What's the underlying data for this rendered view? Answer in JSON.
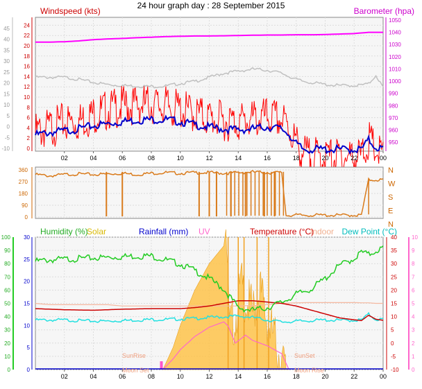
{
  "title": "24 hour graph day : 28 September 2015",
  "x_ticks": [
    "02",
    "04",
    "06",
    "08",
    "10",
    "12",
    "14",
    "16",
    "18",
    "20",
    "22",
    "00"
  ],
  "colors": {
    "wind_avg": "#0000cc",
    "wind_gust": "#ff0000",
    "barometer": "#ff00ff",
    "wind_dir": "#d97a1a",
    "humidity": "#22cc22",
    "solar": "#ffc040",
    "rainfall": "#0000cc",
    "uv": "#ff66cc",
    "temperature": "#cc0000",
    "indoor": "#f5b8a0",
    "dew_point": "#22e0e0",
    "gray_series": "#c0c0c0"
  },
  "chart_data": [
    {
      "type": "line",
      "panel": "wind",
      "labels": {
        "left": "Windspeed (kts)",
        "right": "Barometer (hpa)"
      },
      "left_axis_outer": [
        "45",
        "40",
        "35",
        "30",
        "25",
        "20",
        "15",
        "10",
        "5",
        "0",
        "-5",
        "-10"
      ],
      "left_axis_inner": [
        "24",
        "22",
        "20",
        "18",
        "16",
        "14",
        "12",
        "10",
        "8",
        "6",
        "4",
        "2",
        "0"
      ],
      "right_axis": [
        "1050",
        "1040",
        "1030",
        "1020",
        "1010",
        "1000",
        "990",
        "980",
        "970",
        "960",
        "950"
      ],
      "ylim_windspeed": [
        0,
        25
      ],
      "ylim_barometer": [
        945,
        1050
      ],
      "x_hours": [
        0,
        1,
        2,
        3,
        4,
        5,
        6,
        7,
        8,
        9,
        10,
        11,
        12,
        13,
        14,
        15,
        16,
        17,
        17.5,
        18,
        18.5,
        19,
        20,
        21,
        22,
        22.5,
        23,
        23.5,
        24
      ],
      "series": [
        {
          "key": "barometer",
          "values": [
            1032,
            1032,
            1032.3,
            1033,
            1034,
            1034.6,
            1035,
            1035.6,
            1036,
            1036.5,
            1036.8,
            1037,
            1037,
            1037.2,
            1037.4,
            1037.6,
            1037.8,
            1037.8,
            1037.9,
            1038,
            1038,
            1038,
            1038.2,
            1038.6,
            1039,
            1039.5,
            1040,
            1040,
            1040
          ]
        },
        {
          "key": "gray",
          "values": [
            14,
            14,
            14,
            13.6,
            13,
            12.6,
            12.4,
            12.3,
            12.2,
            12.3,
            12.8,
            13.2,
            14,
            14.8,
            15.2,
            15.6,
            15.4,
            14.8,
            14.2,
            13.6,
            13.2,
            13,
            12.6,
            12.4,
            12.4,
            12.5,
            12.7,
            14.4,
            12
          ]
        },
        {
          "key": "wind_avg",
          "values": [
            3,
            3.5,
            3.8,
            4.2,
            4.8,
            5.2,
            5.6,
            5.9,
            6,
            6,
            5.6,
            5,
            4.5,
            4.2,
            4,
            4.2,
            4.6,
            4.2,
            3.2,
            1.2,
            0.2,
            0.2,
            0.2,
            0.2,
            0.2,
            0.2,
            2,
            0.6,
            0.3
          ]
        },
        {
          "key": "wind_gust",
          "values": [
            5,
            6,
            7,
            7.2,
            8.6,
            9.5,
            10.2,
            10.5,
            10.5,
            10.2,
            9.5,
            8.8,
            7.9,
            7.3,
            7.2,
            7.6,
            8,
            7.5,
            6,
            3,
            1,
            0.3,
            0.3,
            0.3,
            0.3,
            0.3,
            3.5,
            1.5,
            0.5
          ]
        }
      ]
    },
    {
      "type": "line",
      "panel": "wind_direction",
      "left_axis": [
        "360",
        "270",
        "180",
        "90",
        "0"
      ],
      "right_axis": [
        "N",
        "W",
        "S",
        "E",
        "N"
      ],
      "ylim": [
        0,
        360
      ],
      "x_hours": [
        0,
        1,
        2,
        3,
        4,
        5,
        6,
        7,
        8,
        9,
        10,
        11,
        12,
        13,
        14,
        15,
        16,
        17,
        17.3,
        18,
        20,
        22,
        22.5,
        23,
        24
      ],
      "values": [
        330,
        320,
        330,
        335,
        330,
        335,
        340,
        330,
        340,
        345,
        340,
        345,
        345,
        340,
        345,
        350,
        345,
        345,
        20,
        20,
        20,
        20,
        20,
        290,
        290
      ],
      "drop_hours": [
        4.9,
        6,
        11.3,
        12,
        12.5,
        13.5,
        14.5,
        15.8,
        16.5
      ]
    },
    {
      "type": "line",
      "panel": "atmosphere",
      "labels": {
        "humidity": "Humidity (%)",
        "solar": "Solar",
        "rainfall": "Rainfall (mm)",
        "uv": "UV",
        "temperature": "Temperature (°C)",
        "indoor": "Indoor",
        "dew_point": "Dew Point (°C)"
      },
      "left_axis_outer": [
        "100",
        "90",
        "80",
        "70",
        "60",
        "50",
        "40",
        "30",
        "20",
        "10",
        "0"
      ],
      "left_axis_inner": [
        "30",
        "25",
        "20",
        "15",
        "10",
        "5",
        "0"
      ],
      "right_axis_inner": [
        "40",
        "35",
        "30",
        "25",
        "20",
        "15",
        "10",
        "5",
        "0",
        "-5",
        "-10"
      ],
      "right_axis_outer": [
        "10",
        "9",
        "8",
        "7",
        "6",
        "5",
        "4",
        "3",
        "2",
        "1",
        "0"
      ],
      "ylim_humidity": [
        0,
        100
      ],
      "ylim_temperature": [
        -10,
        40
      ],
      "annotations": [
        "SunRise",
        "SunSet",
        "Moon Set",
        "Moon Rise"
      ],
      "x_hours": [
        0,
        1,
        2,
        3,
        4,
        5,
        6,
        7,
        8,
        9,
        10,
        11,
        12,
        13,
        14,
        15,
        16,
        17,
        18,
        19,
        20,
        21,
        22,
        22.5,
        23,
        23.5,
        24
      ],
      "humidity": [
        83,
        84,
        84.5,
        85,
        85.5,
        86,
        86.5,
        87,
        87,
        84,
        81,
        76,
        70,
        62,
        48,
        46,
        48,
        52,
        58,
        62,
        70,
        80,
        85,
        90,
        88,
        91,
        93
      ],
      "temperature": [
        13,
        12.8,
        12.6,
        12.5,
        12.4,
        12.6,
        12.8,
        12.9,
        13,
        13,
        13,
        13.4,
        14,
        15,
        16,
        16,
        15.5,
        15,
        14,
        12.5,
        11,
        9.5,
        8.8,
        8.5,
        10.5,
        9,
        8.6
      ],
      "dew_point": [
        9,
        9,
        9,
        8.8,
        8.6,
        8.6,
        8.8,
        9,
        9.2,
        9.2,
        9.4,
        9.6,
        10,
        10.2,
        10.5,
        10,
        9,
        8.3,
        8.5,
        8.8,
        9,
        8.9,
        8.9,
        9,
        11.2,
        9.2,
        9.3
      ],
      "indoor": [
        15,
        14.5,
        14.5,
        14.5,
        14.5,
        14.5,
        14,
        14,
        14,
        14,
        14,
        14,
        14,
        14,
        14,
        14.2,
        14.5,
        15,
        15.2,
        15.3,
        15.3,
        15.3,
        15.3,
        15.2,
        15.2,
        15,
        15
      ],
      "solar_hours": [
        8.8,
        9.5,
        10,
        11,
        12,
        13,
        13.2,
        13.4,
        13.8,
        14.2,
        14.5,
        15,
        15.5,
        16,
        16.5,
        17,
        17.5
      ],
      "solar": [
        0,
        5,
        10,
        18,
        24,
        28,
        33,
        12,
        15,
        22,
        19,
        16,
        21,
        14,
        10,
        5,
        0
      ],
      "uv_hours": [
        8.8,
        9.5,
        10,
        11,
        12,
        13,
        13.3,
        13.8,
        14.5,
        15,
        16,
        17,
        17.5
      ],
      "uv": [
        0,
        0.8,
        1.5,
        2.5,
        3.2,
        3.6,
        3.3,
        2.0,
        2.6,
        2.2,
        1.8,
        1.2,
        0
      ]
    }
  ]
}
